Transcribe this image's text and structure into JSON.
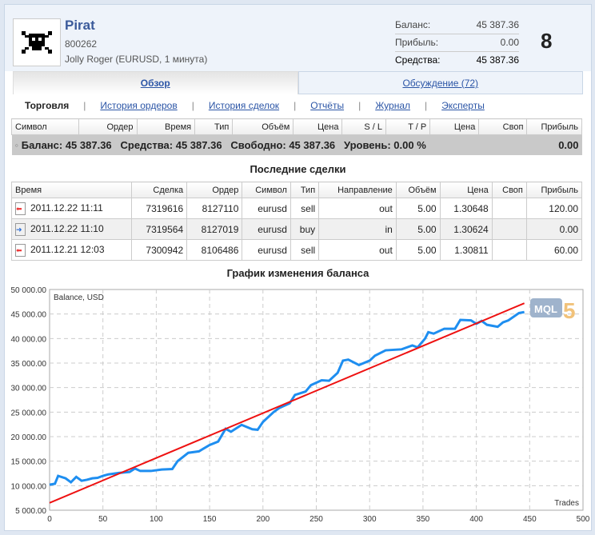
{
  "profile": {
    "name": "Pirat",
    "account": "800262",
    "description": "Jolly Roger (EURUSD, 1 минута)",
    "rank": "8",
    "stats": [
      {
        "label": "Баланс:",
        "value": "45 387.36"
      },
      {
        "label": "Прибыль:",
        "value": "0.00"
      },
      {
        "label": "Средства:",
        "value": "45 387.36"
      }
    ]
  },
  "tabs": [
    {
      "label": "Обзор",
      "active": true
    },
    {
      "label": "Обсуждение (72)",
      "active": false
    }
  ],
  "subnav": [
    "Торговля",
    "История ордеров",
    "История сделок",
    "Отчёты",
    "Журнал",
    "Эксперты"
  ],
  "positions": {
    "headers": [
      "Символ",
      "Ордер",
      "Время",
      "Тип",
      "Объём",
      "Цена",
      "S / L",
      "T / P",
      "Цена",
      "Своп",
      "Прибыль"
    ],
    "summary": "Баланс: 45 387.36   Средства: 45 387.36   Свободно: 45 387.36   Уровень: 0.00 %",
    "summary_profit": "0.00"
  },
  "deals": {
    "title": "Последние сделки",
    "headers": [
      "Время",
      "Сделка",
      "Ордер",
      "Символ",
      "Тип",
      "Направление",
      "Объём",
      "Цена",
      "Своп",
      "Прибыль"
    ],
    "rows": [
      {
        "icon": "sell-out-icon",
        "cells": [
          "2011.12.22 11:11",
          "7319616",
          "8127110",
          "eurusd",
          "sell",
          "out",
          "5.00",
          "1.30648",
          "",
          "120.00"
        ]
      },
      {
        "icon": "buy-in-icon",
        "cells": [
          "2011.12.22 11:10",
          "7319564",
          "8127019",
          "eurusd",
          "buy",
          "in",
          "5.00",
          "1.30624",
          "",
          "0.00"
        ]
      },
      {
        "icon": "sell-out-icon",
        "cells": [
          "2011.12.21 12:03",
          "7300942",
          "8106486",
          "eurusd",
          "sell",
          "out",
          "5.00",
          "1.30811",
          "",
          "60.00"
        ]
      }
    ]
  },
  "chart_data": {
    "type": "line",
    "title": "График изменения баланса",
    "ylabel": "Balance, USD",
    "xlabel": "Trades",
    "logo": "MQL5 community",
    "xlim": [
      0,
      500
    ],
    "ylim": [
      5000,
      50000
    ],
    "grid": true,
    "xticks": [
      0,
      50,
      100,
      150,
      200,
      250,
      300,
      350,
      400,
      450,
      500
    ],
    "yticks": [
      "5 000.00",
      "10 000.00",
      "15 000.00",
      "20 000.00",
      "25 000.00",
      "30 000.00",
      "35 000.00",
      "40 000.00",
      "45 000.00",
      "50 000.00"
    ],
    "series": [
      {
        "color": "#1e8ef0",
        "x": [
          0,
          5,
          8,
          15,
          20,
          25,
          30,
          35,
          40,
          45,
          50,
          55,
          65,
          75,
          80,
          85,
          95,
          105,
          115,
          120,
          130,
          140,
          150,
          158,
          165,
          170,
          180,
          190,
          195,
          200,
          210,
          215,
          225,
          230,
          240,
          245,
          255,
          262,
          270,
          275,
          280,
          290,
          300,
          305,
          315,
          330,
          340,
          345,
          352,
          355,
          360,
          370,
          380,
          385,
          395,
          400,
          405,
          410,
          420,
          425,
          430,
          440,
          445
        ],
        "y": [
          10200,
          10400,
          12000,
          11500,
          10700,
          11800,
          11000,
          11200,
          11500,
          11600,
          12000,
          12300,
          12600,
          12800,
          13500,
          13000,
          13000,
          13300,
          13400,
          15000,
          16700,
          17000,
          18300,
          19000,
          21600,
          21000,
          22400,
          21500,
          21400,
          23000,
          25000,
          25800,
          26800,
          28500,
          29200,
          30500,
          31500,
          31400,
          33000,
          35500,
          35700,
          34600,
          35500,
          36500,
          37600,
          37800,
          38600,
          38200,
          40000,
          41300,
          41000,
          42000,
          42000,
          43800,
          43700,
          43000,
          43600,
          42800,
          42400,
          43300,
          43700,
          45200,
          45400
        ]
      },
      {
        "color": "#ee1111",
        "x": [
          0,
          445
        ],
        "y": [
          6500,
          47200
        ]
      }
    ]
  }
}
